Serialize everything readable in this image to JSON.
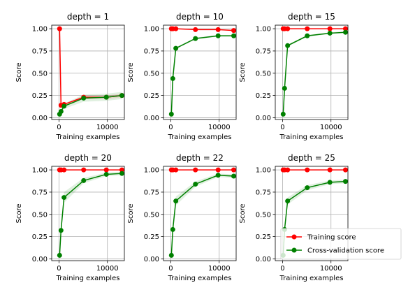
{
  "chart_data": {
    "type": "line",
    "xlabel": "Training examples",
    "ylabel": "Score",
    "xlim": [
      -1500,
      13500
    ],
    "ylim": [
      -0.02,
      1.04
    ],
    "xticks": [
      0,
      10000
    ],
    "xtick_labels": [
      "0",
      "10000"
    ],
    "yticks": [
      0.0,
      0.25,
      0.5,
      0.75,
      1.0
    ],
    "ytick_labels": [
      "0.00",
      "0.25",
      "0.50",
      "0.75",
      "1.00"
    ],
    "grid": true,
    "legend": {
      "placement": "lower-right of last panel",
      "entries": [
        "Training score",
        "Cross-validation score"
      ]
    },
    "colors": {
      "train": "#ff0000",
      "cv": "#008000",
      "train_band": "#ff0000",
      "cv_band": "#008000"
    },
    "panels": [
      {
        "title": "depth = 1",
        "x": [
          130,
          423,
          1046,
          5097,
          9777,
          12994
        ],
        "series": [
          {
            "name": "Training score",
            "values": [
              1.0,
              0.14,
              0.15,
              0.23,
              0.23,
              0.25
            ],
            "band": [
              0.0,
              0.0,
              0.0,
              0.02,
              0.02,
              0.02
            ]
          },
          {
            "name": "Cross-validation score",
            "values": [
              0.04,
              0.07,
              0.13,
              0.22,
              0.23,
              0.25
            ],
            "band": [
              0.01,
              0.02,
              0.03,
              0.04,
              0.04,
              0.04
            ]
          }
        ]
      },
      {
        "title": "depth = 10",
        "x": [
          130,
          423,
          1046,
          5097,
          9777,
          12994
        ],
        "series": [
          {
            "name": "Training score",
            "values": [
              1.0,
              1.0,
              1.0,
              0.99,
              0.99,
              0.98
            ],
            "band": [
              0.0,
              0.0,
              0.0,
              0.0,
              0.0,
              0.0
            ]
          },
          {
            "name": "Cross-validation score",
            "values": [
              0.04,
              0.44,
              0.78,
              0.89,
              0.92,
              0.92
            ],
            "band": [
              0.0,
              0.0,
              0.01,
              0.01,
              0.01,
              0.01
            ]
          }
        ]
      },
      {
        "title": "depth = 15",
        "x": [
          130,
          423,
          1046,
          5097,
          9777,
          12994
        ],
        "series": [
          {
            "name": "Training score",
            "values": [
              1.0,
              1.0,
              1.0,
              1.0,
              1.0,
              1.0
            ],
            "band": [
              0.0,
              0.0,
              0.0,
              0.0,
              0.0,
              0.0
            ]
          },
          {
            "name": "Cross-validation score",
            "values": [
              0.04,
              0.33,
              0.81,
              0.92,
              0.95,
              0.96
            ],
            "band": [
              0.0,
              0.0,
              0.01,
              0.01,
              0.01,
              0.01
            ]
          }
        ]
      },
      {
        "title": "depth = 20",
        "x": [
          130,
          423,
          1046,
          5097,
          9777,
          12994
        ],
        "series": [
          {
            "name": "Training score",
            "values": [
              1.0,
              1.0,
              1.0,
              1.0,
              1.0,
              1.0
            ],
            "band": [
              0.0,
              0.0,
              0.0,
              0.0,
              0.0,
              0.0
            ]
          },
          {
            "name": "Cross-validation score",
            "values": [
              0.04,
              0.32,
              0.69,
              0.88,
              0.95,
              0.96
            ],
            "band": [
              0.0,
              0.02,
              0.06,
              0.03,
              0.02,
              0.02
            ]
          }
        ]
      },
      {
        "title": "depth = 22",
        "x": [
          130,
          423,
          1046,
          5097,
          9777,
          12994
        ],
        "series": [
          {
            "name": "Training score",
            "values": [
              1.0,
              1.0,
              1.0,
              1.0,
              1.0,
              1.0
            ],
            "band": [
              0.0,
              0.0,
              0.0,
              0.0,
              0.0,
              0.0
            ]
          },
          {
            "name": "Cross-validation score",
            "values": [
              0.04,
              0.33,
              0.65,
              0.84,
              0.94,
              0.93
            ],
            "band": [
              0.0,
              0.02,
              0.05,
              0.03,
              0.02,
              0.02
            ]
          }
        ]
      },
      {
        "title": "depth = 25",
        "x": [
          130,
          423,
          1046,
          5097,
          9777,
          12994
        ],
        "series": [
          {
            "name": "Training score",
            "values": [
              1.0,
              1.0,
              1.0,
              1.0,
              1.0,
              1.0
            ],
            "band": [
              0.0,
              0.0,
              0.0,
              0.0,
              0.0,
              0.0
            ]
          },
          {
            "name": "Cross-validation score",
            "values": [
              0.04,
              0.33,
              0.65,
              0.8,
              0.86,
              0.87
            ],
            "band": [
              0.0,
              0.02,
              0.04,
              0.03,
              0.02,
              0.02
            ]
          }
        ]
      }
    ]
  }
}
